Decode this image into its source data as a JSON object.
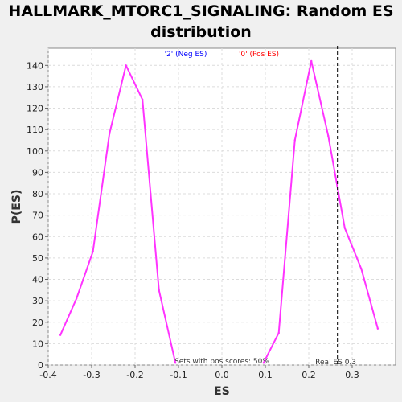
{
  "chart_data": {
    "type": "line",
    "title_line1": "HALLMARK_MTORC1_SIGNALING: Random ES",
    "title_line2": "distribution",
    "xlabel": "ES",
    "ylabel": "P(ES)",
    "xlim": [
      -0.4,
      0.4
    ],
    "ylim": [
      0,
      148
    ],
    "xticks": [
      -0.4,
      -0.3,
      -0.2,
      -0.1,
      0.0,
      0.1,
      0.2,
      0.3
    ],
    "xtick_labels": [
      "-0.4",
      "-0.3",
      "-0.2",
      "-0.1",
      "0.0",
      "0.1",
      "0.2",
      "0.3"
    ],
    "yticks": [
      0,
      10,
      20,
      30,
      40,
      50,
      60,
      70,
      80,
      90,
      100,
      110,
      120,
      130,
      140
    ],
    "ytick_labels": [
      "0",
      "10",
      "20",
      "30",
      "40",
      "50",
      "60",
      "70",
      "80",
      "90",
      "100",
      "110",
      "120",
      "130",
      "140"
    ],
    "grid": true,
    "legend": [
      {
        "label": "'2' (Neg ES)",
        "color": "#0000ff"
      },
      {
        "label": "'0' (Pos ES)",
        "color": "#ff0000"
      }
    ],
    "series": [
      {
        "color": "#ff33ff",
        "points": [
          {
            "x": -0.372,
            "y": 14
          },
          {
            "x": -0.335,
            "y": 31
          },
          {
            "x": -0.297,
            "y": 53
          },
          {
            "x": -0.259,
            "y": 108
          },
          {
            "x": -0.221,
            "y": 140
          },
          {
            "x": -0.183,
            "y": 124
          },
          {
            "x": -0.145,
            "y": 35
          },
          {
            "x": -0.107,
            "y": 1
          }
        ]
      },
      {
        "color": "#ff33ff",
        "points": [
          {
            "x": 0.096,
            "y": 1
          },
          {
            "x": 0.131,
            "y": 15
          },
          {
            "x": 0.168,
            "y": 105
          },
          {
            "x": 0.206,
            "y": 142
          },
          {
            "x": 0.245,
            "y": 107
          },
          {
            "x": 0.283,
            "y": 64
          },
          {
            "x": 0.321,
            "y": 45
          },
          {
            "x": 0.359,
            "y": 17
          }
        ]
      }
    ],
    "real_es": 0.267,
    "real_es_label": "Real ES 0.3",
    "pos_scores_note": "Sets with pos scores: 50%"
  }
}
